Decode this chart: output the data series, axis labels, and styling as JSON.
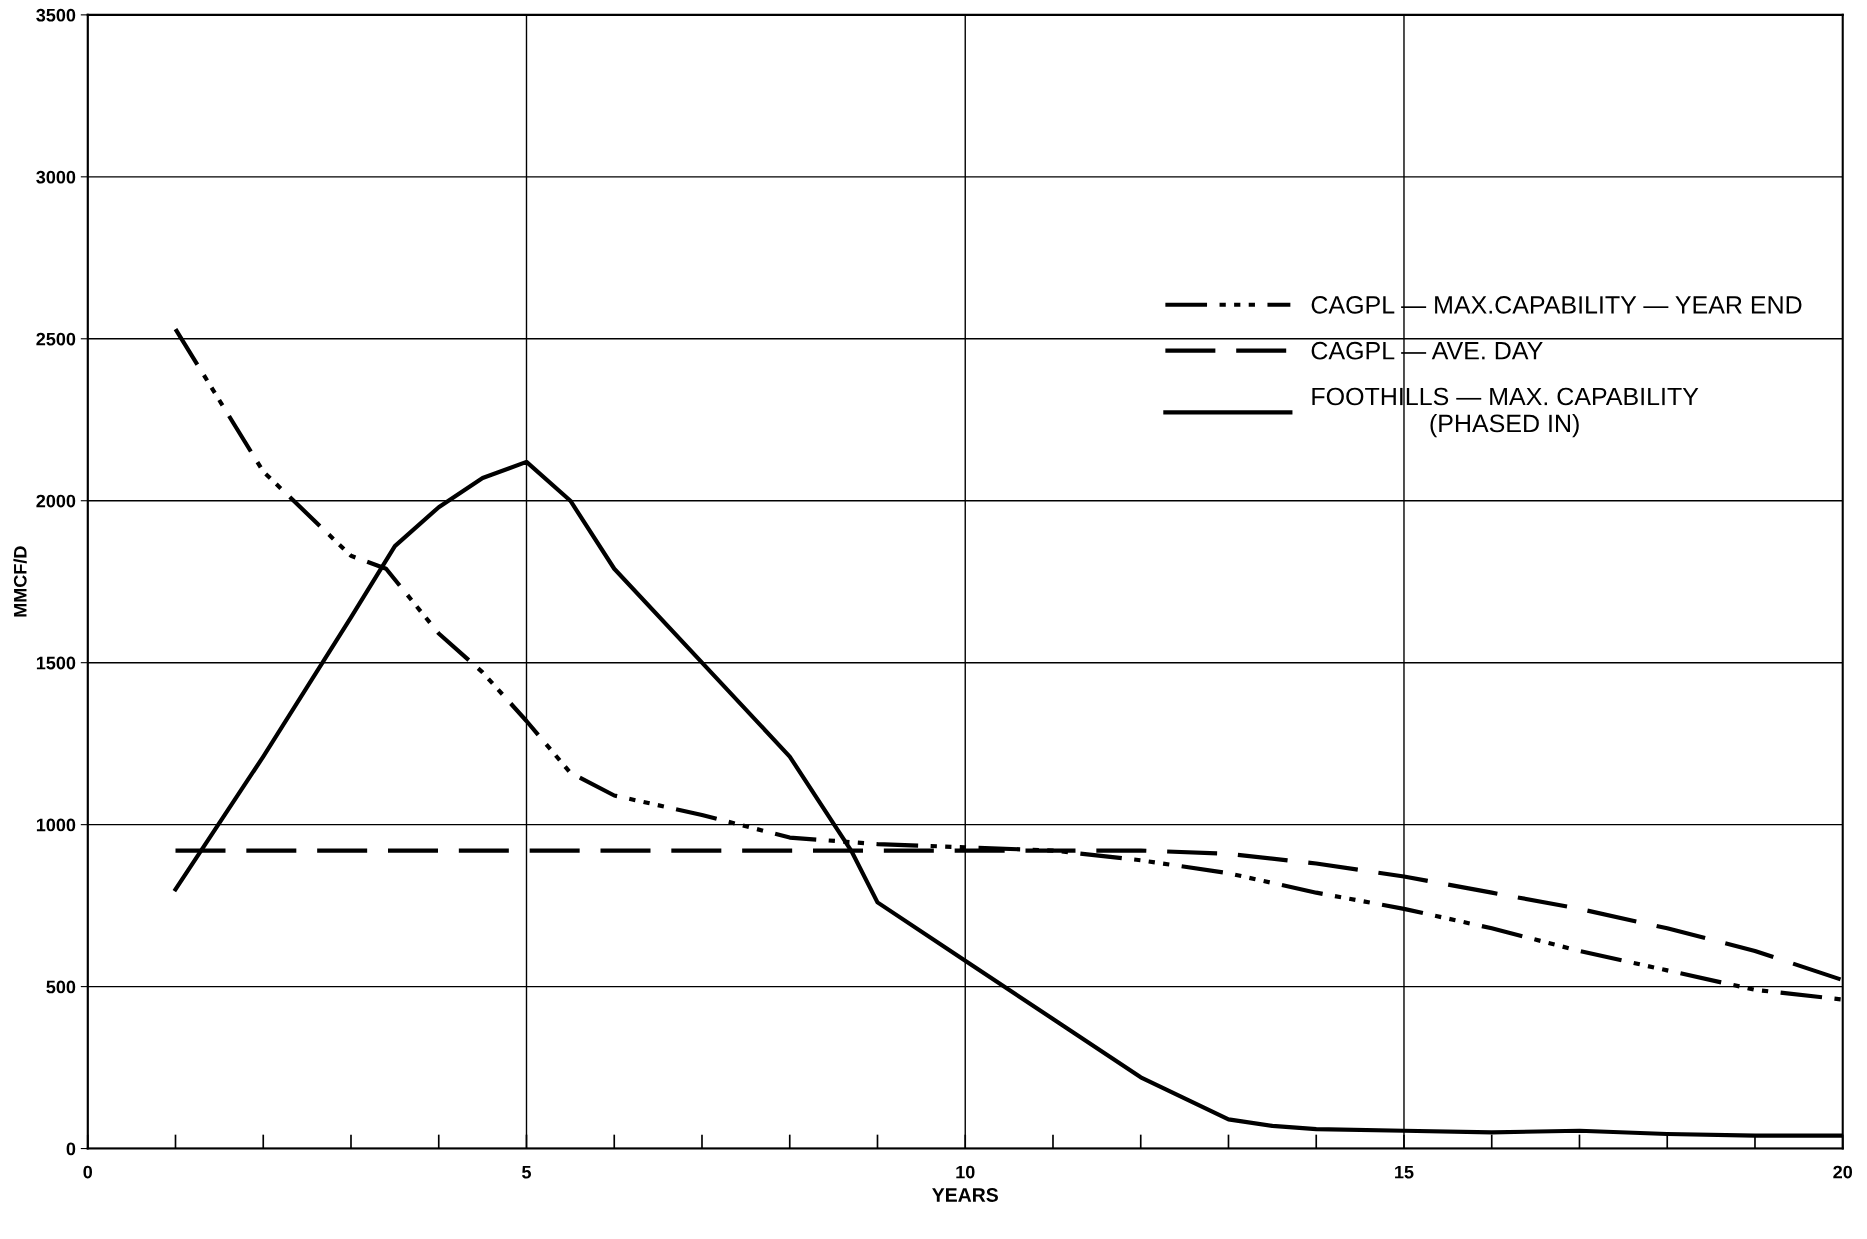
{
  "chart_data": {
    "type": "line",
    "xlabel": "YEARS",
    "ylabel": "MMCF/D",
    "xlim": [
      0,
      20
    ],
    "ylim": [
      0,
      3500
    ],
    "xticks": [
      0,
      {
        "value": 1,
        "label": null
      },
      {
        "value": 2,
        "label": null
      },
      {
        "value": 3,
        "label": null
      },
      {
        "value": 4,
        "label": null
      },
      5,
      {
        "value": 6,
        "label": null
      },
      {
        "value": 7,
        "label": null
      },
      {
        "value": 8,
        "label": null
      },
      {
        "value": 9,
        "label": null
      },
      10,
      {
        "value": 11,
        "label": null
      },
      {
        "value": 12,
        "label": null
      },
      {
        "value": 13,
        "label": null
      },
      {
        "value": 14,
        "label": null
      },
      15,
      {
        "value": 16,
        "label": null
      },
      {
        "value": 17,
        "label": null
      },
      {
        "value": 18,
        "label": null
      },
      {
        "value": 19,
        "label": null
      },
      20
    ],
    "yticks": [
      0,
      500,
      1000,
      1500,
      2000,
      2500,
      3000,
      3500
    ],
    "grid": true,
    "legend": "right",
    "marker": "none",
    "series": [
      {
        "name": "CAGPL — MAX.CAPABILITY — YEAR END",
        "color": "#000000",
        "line_style": "dotted",
        "x": [
          1,
          2,
          3,
          3.4,
          4,
          4.5,
          5,
          5.5,
          6,
          7,
          8,
          9,
          10,
          11,
          12,
          13,
          14,
          15,
          16,
          17,
          18,
          19,
          20
        ],
        "values": [
          2530,
          2090,
          1830,
          1790,
          1590,
          1470,
          1320,
          1160,
          1090,
          1030,
          960,
          940,
          930,
          920,
          890,
          850,
          790,
          740,
          680,
          610,
          550,
          490,
          460
        ]
      },
      {
        "name": "CAGPL — AVE. DAY",
        "color": "#000000",
        "line_style": "dashed",
        "x": [
          1,
          5,
          10,
          12,
          13,
          14,
          15,
          16,
          17,
          18,
          19,
          20
        ],
        "values": [
          920,
          920,
          920,
          920,
          910,
          880,
          840,
          790,
          740,
          680,
          610,
          520
        ]
      },
      {
        "name": "FOOTHILLS — MAX. CAPABILITY\n(PHASED IN)",
        "color": "#000000",
        "line_style": "solid",
        "x": [
          1,
          2,
          3,
          3.5,
          4,
          4.5,
          5,
          5.5,
          6,
          7,
          8,
          8.7,
          9,
          10,
          11,
          12,
          13,
          13.5,
          14,
          15,
          16,
          17,
          18,
          19,
          20
        ],
        "values": [
          800,
          1210,
          1640,
          1860,
          1980,
          2070,
          2120,
          2000,
          1790,
          1500,
          1210,
          920,
          760,
          580,
          400,
          220,
          90,
          70,
          60,
          55,
          50,
          55,
          45,
          40,
          40
        ]
      }
    ]
  }
}
